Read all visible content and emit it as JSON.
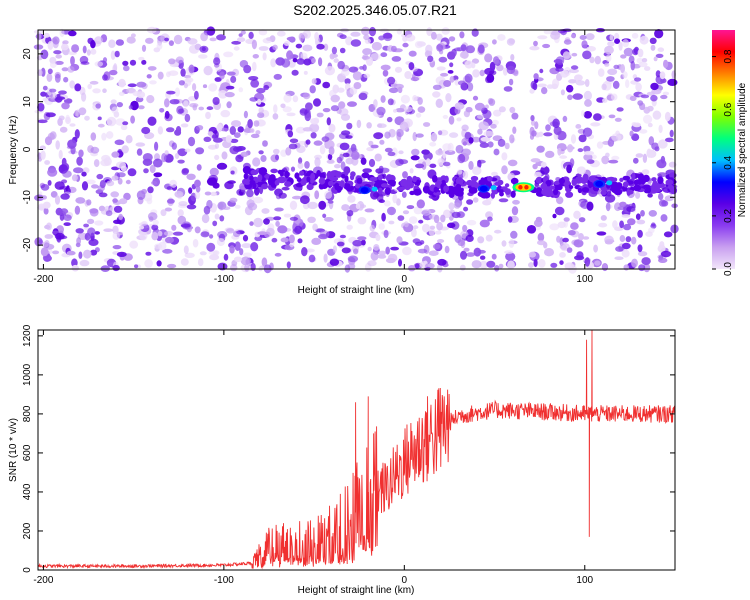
{
  "title": "S202.2025.346.05.07.R21",
  "colors": {
    "snr_line": "#f03030",
    "colormap": [
      "#f2e6fa",
      "#c9a0f0",
      "#8a3cf0",
      "#5a00e6",
      "#0000ff",
      "#00bfff",
      "#00ff7f",
      "#7fff00",
      "#ffff00",
      "#ff8000",
      "#ff0000",
      "#ff1493"
    ]
  },
  "chart_data": [
    {
      "type": "heatmap",
      "xlabel": "Height of straight line (km)",
      "ylabel": "Frequency (Hz)",
      "xlim": [
        -203,
        150
      ],
      "ylim": [
        -25,
        25
      ],
      "xticks": [
        -200,
        -100,
        0,
        100
      ],
      "yticks": [
        -20,
        -10,
        0,
        10,
        20
      ],
      "gap_band_x": [
        62,
        70
      ],
      "colorbar": {
        "label": "Normalized spectral amplitude",
        "range": [
          0.0,
          0.9
        ],
        "ticks": [
          0.0,
          0.2,
          0.4,
          0.6,
          0.8
        ]
      },
      "signal_track": {
        "description_points": [
          {
            "x": -200,
            "y": -6
          },
          {
            "x": -80,
            "y": -6
          },
          {
            "x": 0,
            "y": -7.5
          },
          {
            "x": 66,
            "y": -8
          },
          {
            "x": 150,
            "y": -7
          }
        ],
        "hotspots": [
          {
            "x": -22,
            "y": -8.5,
            "value": 0.35
          },
          {
            "x": 44,
            "y": -8.2,
            "value": 0.35
          },
          {
            "x": 66,
            "y": -7.9,
            "value": 0.9
          },
          {
            "x": 108,
            "y": -7.2,
            "value": 0.3
          }
        ]
      }
    },
    {
      "type": "line",
      "xlabel": "Height of straight line (km)",
      "ylabel": "SNR (10 * v/v)",
      "xlim": [
        -203,
        150
      ],
      "ylim": [
        0,
        1230
      ],
      "xticks": [
        -200,
        -100,
        0,
        100
      ],
      "yticks": [
        0,
        200,
        400,
        600,
        800,
        1000,
        1200
      ],
      "series": [
        {
          "profile": [
            {
              "x": -203,
              "y": 20
            },
            {
              "x": -150,
              "y": 20
            },
            {
              "x": -100,
              "y": 25
            },
            {
              "x": -85,
              "y": 35
            },
            {
              "x": -75,
              "y": 120
            },
            {
              "x": -60,
              "y": 150
            },
            {
              "x": -45,
              "y": 160
            },
            {
              "x": -30,
              "y": 250
            },
            {
              "x": -20,
              "y": 400
            },
            {
              "x": -10,
              "y": 420
            },
            {
              "x": 0,
              "y": 550
            },
            {
              "x": 10,
              "y": 650
            },
            {
              "x": 20,
              "y": 720
            },
            {
              "x": 30,
              "y": 790
            },
            {
              "x": 50,
              "y": 820
            },
            {
              "x": 80,
              "y": 810
            },
            {
              "x": 100,
              "y": 800
            },
            {
              "x": 150,
              "y": 800
            }
          ],
          "spikes": [
            {
              "x": -27,
              "y": 860
            },
            {
              "x": -20,
              "y": 890
            },
            {
              "x": -17,
              "y": 700
            },
            {
              "x": 101,
              "y": 1180
            },
            {
              "x": 102.5,
              "y": 170
            },
            {
              "x": 104,
              "y": 1230
            }
          ]
        }
      ]
    }
  ]
}
